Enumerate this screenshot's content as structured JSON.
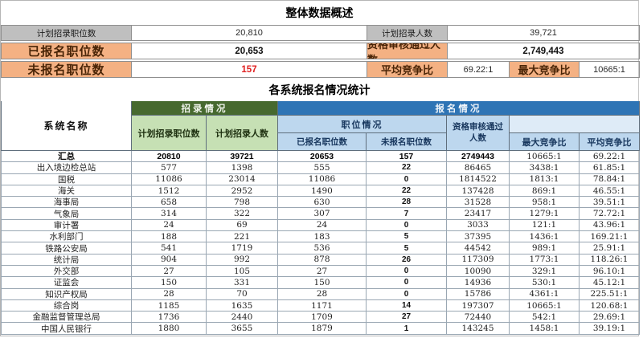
{
  "colors": {
    "gray_label_bg": "#BFBFBF",
    "orange_label_bg": "#F4B183",
    "dark_green_header": "#46692E",
    "light_green_header": "#C6E0B4",
    "dark_blue_header": "#2E74B5",
    "light_blue_header": "#BDD7EE",
    "pale_blue_cell": "#DEEBF7",
    "alert_red_text": "#E01F1F"
  },
  "overview": {
    "title": "整体数据概述",
    "rows": [
      {
        "label": "计划招录职位数",
        "value": "20,810",
        "label2": "计划招录人数",
        "value2": "39,721"
      },
      {
        "label": "已报名职位数",
        "value": "20,653",
        "label2": "资格审核通过人数",
        "value2": "2,749,443"
      },
      {
        "label": "未报名职位数",
        "value": "157",
        "label2": "平均竞争比",
        "value2": "69.22:1",
        "label3": "最大竞争比",
        "value3": "10665:1"
      }
    ]
  },
  "systems": {
    "title": "各系统报名情况统计",
    "header": {
      "system_name": "系统名称",
      "recruit_group": "招录情况",
      "signup_group": "报名情况",
      "planned_positions": "计划招录职位数",
      "planned_people": "计划招录人数",
      "position_group": "职位情况",
      "registered_positions": "已报名职位数",
      "unregistered_positions": "未报名职位数",
      "approved_people": "资格审核通过人数",
      "max_ratio": "最大竞争比",
      "avg_ratio": "平均竞争比"
    },
    "rows": [
      {
        "name": "汇总",
        "planned_pos": "20810",
        "planned_ppl": "39721",
        "reg": "20653",
        "unreg": "157",
        "approved": "2749443",
        "max": "10665:1",
        "avg": "69.22:1",
        "bold": true
      },
      {
        "name": "出入境边检总站",
        "planned_pos": "577",
        "planned_ppl": "1398",
        "reg": "555",
        "unreg": "22",
        "approved": "86465",
        "max": "3438:1",
        "avg": "61.85:1"
      },
      {
        "name": "国税",
        "planned_pos": "11086",
        "planned_ppl": "23014",
        "reg": "11086",
        "unreg": "0",
        "approved": "1814522",
        "max": "1813:1",
        "avg": "78.84:1"
      },
      {
        "name": "海关",
        "planned_pos": "1512",
        "planned_ppl": "2952",
        "reg": "1490",
        "unreg": "22",
        "approved": "137428",
        "max": "869:1",
        "avg": "46.55:1"
      },
      {
        "name": "海事局",
        "planned_pos": "658",
        "planned_ppl": "798",
        "reg": "630",
        "unreg": "28",
        "approved": "31528",
        "max": "958:1",
        "avg": "39.51:1"
      },
      {
        "name": "气象局",
        "planned_pos": "314",
        "planned_ppl": "322",
        "reg": "307",
        "unreg": "7",
        "approved": "23417",
        "max": "1279:1",
        "avg": "72.72:1"
      },
      {
        "name": "审计署",
        "planned_pos": "24",
        "planned_ppl": "69",
        "reg": "24",
        "unreg": "0",
        "approved": "3033",
        "max": "121:1",
        "avg": "43.96:1"
      },
      {
        "name": "水利部门",
        "planned_pos": "188",
        "planned_ppl": "221",
        "reg": "183",
        "unreg": "5",
        "approved": "37395",
        "max": "1436:1",
        "avg": "169.21:1"
      },
      {
        "name": "铁路公安局",
        "planned_pos": "541",
        "planned_ppl": "1719",
        "reg": "536",
        "unreg": "5",
        "approved": "44542",
        "max": "989:1",
        "avg": "25.91:1"
      },
      {
        "name": "统计局",
        "planned_pos": "904",
        "planned_ppl": "992",
        "reg": "878",
        "unreg": "26",
        "approved": "117309",
        "max": "1773:1",
        "avg": "118.26:1"
      },
      {
        "name": "外交部",
        "planned_pos": "27",
        "planned_ppl": "105",
        "reg": "27",
        "unreg": "0",
        "approved": "10090",
        "max": "329:1",
        "avg": "96.10:1"
      },
      {
        "name": "证监会",
        "planned_pos": "150",
        "planned_ppl": "331",
        "reg": "150",
        "unreg": "0",
        "approved": "14936",
        "max": "530:1",
        "avg": "45.12:1"
      },
      {
        "name": "知识产权局",
        "planned_pos": "28",
        "planned_ppl": "70",
        "reg": "28",
        "unreg": "0",
        "approved": "15786",
        "max": "4361:1",
        "avg": "225.51:1"
      },
      {
        "name": "综合岗",
        "planned_pos": "1185",
        "planned_ppl": "1635",
        "reg": "1171",
        "unreg": "14",
        "approved": "197307",
        "max": "10665:1",
        "avg": "120.68:1"
      },
      {
        "name": "金融监督管理总局",
        "planned_pos": "1736",
        "planned_ppl": "2440",
        "reg": "1709",
        "unreg": "27",
        "approved": "72440",
        "max": "542:1",
        "avg": "29.69:1"
      },
      {
        "name": "中国人民银行",
        "planned_pos": "1880",
        "planned_ppl": "3655",
        "reg": "1879",
        "unreg": "1",
        "approved": "143245",
        "max": "1458:1",
        "avg": "39.19:1"
      }
    ]
  }
}
